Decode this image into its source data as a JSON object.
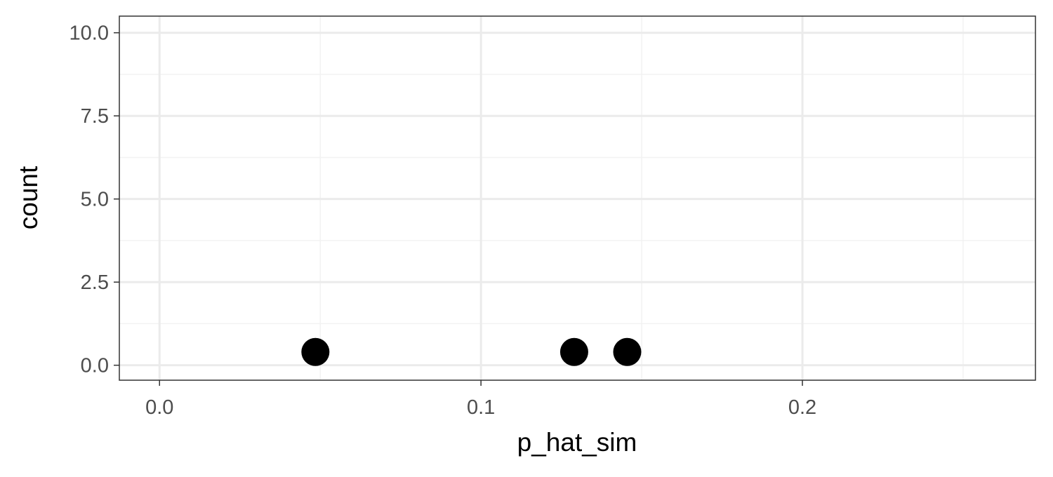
{
  "chart_data": {
    "type": "scatter",
    "title": "",
    "xlabel": "p_hat_sim",
    "ylabel": "count",
    "xlim": [
      -0.0125,
      0.2725
    ],
    "ylim": [
      -0.45,
      10.5
    ],
    "x_ticks": [
      0.0,
      0.1,
      0.2
    ],
    "x_tick_labels": [
      "0.0",
      "0.1",
      "0.2"
    ],
    "x_minor_ticks": [
      0.05,
      0.15,
      0.25
    ],
    "y_ticks": [
      0.0,
      2.5,
      5.0,
      7.5,
      10.0
    ],
    "y_tick_labels": [
      "0.0",
      "2.5",
      "5.0",
      "7.5",
      "10.0"
    ],
    "y_minor_ticks": [
      1.25,
      3.75,
      6.25,
      8.75
    ],
    "grid": true,
    "legend": "none",
    "points": [
      {
        "x": 0.0485,
        "y": 0.4
      },
      {
        "x": 0.129,
        "y": 0.4
      },
      {
        "x": 0.1455,
        "y": 0.4
      }
    ],
    "colors": {
      "point": "#000000",
      "grid_major": "#ebebeb",
      "grid_minor": "#f2f2f2",
      "panel_border": "#333333",
      "tick_text": "#4d4d4d",
      "axis_title": "#000000"
    }
  }
}
